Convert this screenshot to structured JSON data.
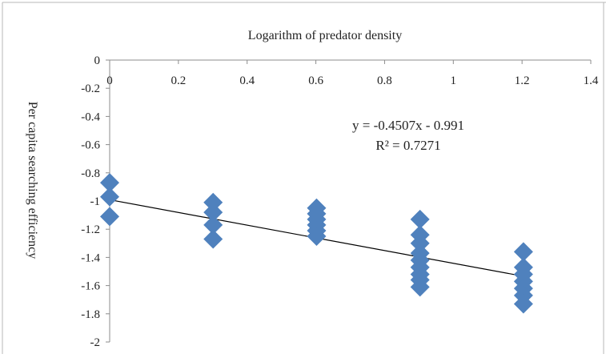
{
  "chart_data": {
    "type": "scatter",
    "title": "",
    "xlabel": "Logarithm of predator density",
    "ylabel": "Per capita searching efficiency",
    "xlim": [
      0,
      1.4
    ],
    "ylim": [
      -2,
      0
    ],
    "x_ticks": [
      0,
      0.2,
      0.4,
      0.6,
      0.8,
      1,
      1.2,
      1.4
    ],
    "x_tick_labels": [
      "0",
      "0.2",
      "0.4",
      "0.6",
      "0.8",
      "1",
      "1.2",
      "1.4"
    ],
    "y_ticks": [
      0,
      -0.2,
      -0.4,
      -0.6,
      -0.8,
      -1,
      -1.2,
      -1.4,
      -1.6,
      -1.8,
      -2
    ],
    "y_tick_labels": [
      "0",
      "-0.2",
      "-0.4",
      "-0.6",
      "-0.8",
      "-1",
      "-1.2",
      "-1.4",
      "-1.6",
      "-1.8",
      "-2"
    ],
    "x_axis_position": "top",
    "grid": false,
    "legend": "none",
    "marker": "diamond",
    "marker_color": "#4f81bd",
    "trendline_color": "#000000",
    "series": [
      {
        "points": [
          {
            "x": 0,
            "y": -0.87
          },
          {
            "x": 0,
            "y": -0.97
          },
          {
            "x": 0,
            "y": -1.11
          },
          {
            "x": 0.301,
            "y": -1.01
          },
          {
            "x": 0.301,
            "y": -1.08
          },
          {
            "x": 0.301,
            "y": -1.17
          },
          {
            "x": 0.301,
            "y": -1.27
          },
          {
            "x": 0.602,
            "y": -1.05
          },
          {
            "x": 0.602,
            "y": -1.09
          },
          {
            "x": 0.602,
            "y": -1.13
          },
          {
            "x": 0.602,
            "y": -1.17
          },
          {
            "x": 0.602,
            "y": -1.21
          },
          {
            "x": 0.602,
            "y": -1.25
          },
          {
            "x": 0.903,
            "y": -1.13
          },
          {
            "x": 0.903,
            "y": -1.24
          },
          {
            "x": 0.903,
            "y": -1.3
          },
          {
            "x": 0.903,
            "y": -1.37
          },
          {
            "x": 0.903,
            "y": -1.42
          },
          {
            "x": 0.903,
            "y": -1.47
          },
          {
            "x": 0.903,
            "y": -1.52
          },
          {
            "x": 0.903,
            "y": -1.56
          },
          {
            "x": 0.903,
            "y": -1.61
          },
          {
            "x": 1.204,
            "y": -1.36
          },
          {
            "x": 1.204,
            "y": -1.47
          },
          {
            "x": 1.204,
            "y": -1.52
          },
          {
            "x": 1.204,
            "y": -1.57
          },
          {
            "x": 1.204,
            "y": -1.62
          },
          {
            "x": 1.204,
            "y": -1.67
          },
          {
            "x": 1.204,
            "y": -1.73
          }
        ]
      }
    ],
    "trendline": {
      "slope": -0.4507,
      "intercept": -0.991,
      "x_range": [
        0,
        1.204
      ]
    },
    "equation_text": "y = -0.4507x - 0.991",
    "r2_text": "R² = 0.7271"
  }
}
